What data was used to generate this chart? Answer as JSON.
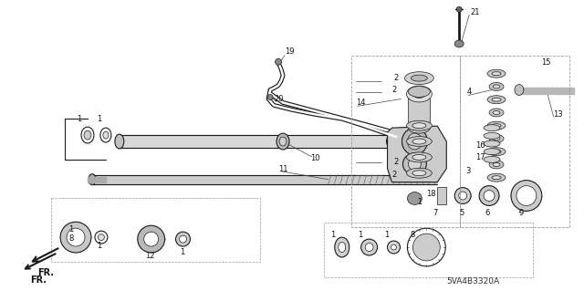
{
  "bg_color": "#ffffff",
  "part_number_label": "5VA4B3320A",
  "fr_label": "FR.",
  "fig_width": 6.4,
  "fig_height": 3.19,
  "dpi": 100,
  "line_color": "#1a1a1a",
  "text_color": "#111111"
}
